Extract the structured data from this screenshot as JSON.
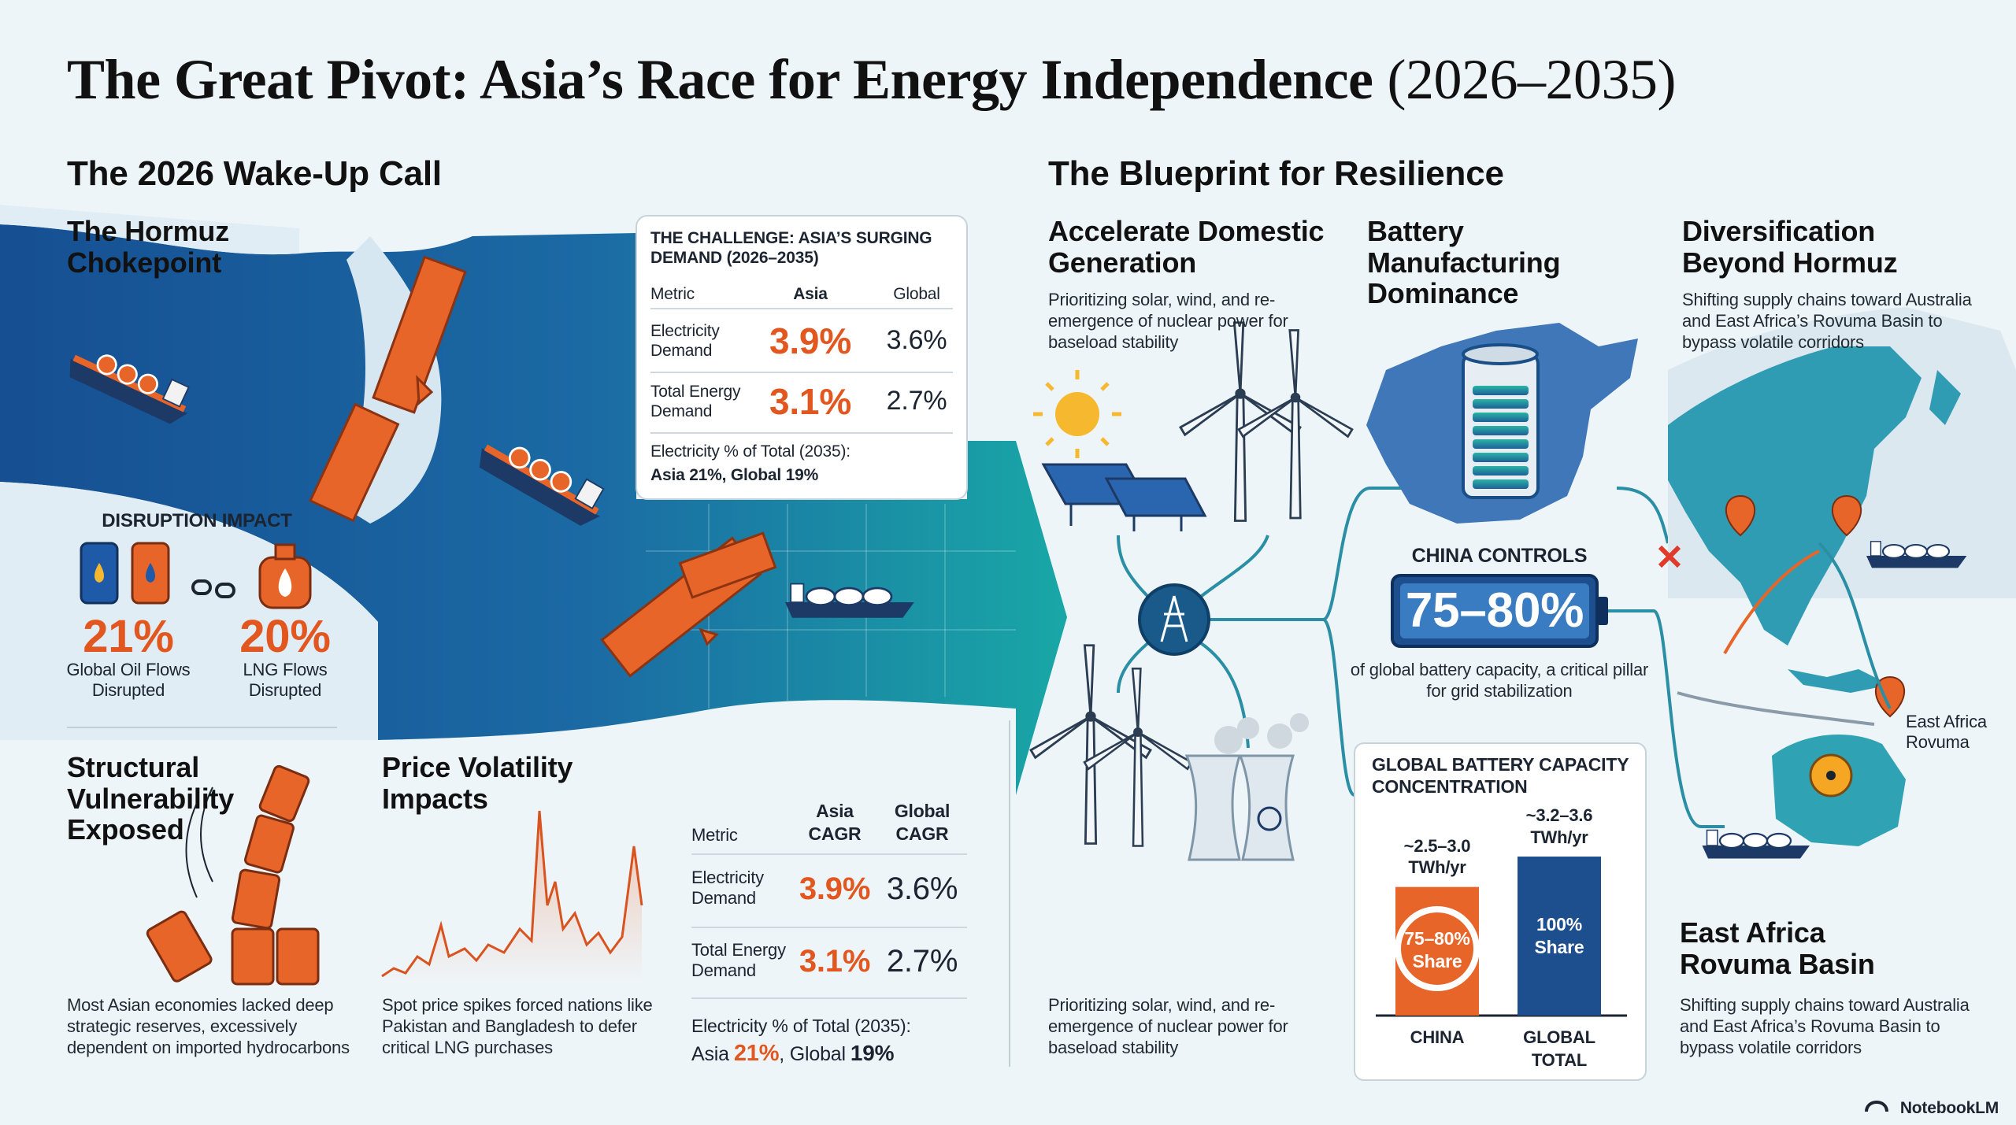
{
  "header": {
    "title": "The Great Pivot: Asia’s Race for Energy Independence",
    "years": "(2026–2035)"
  },
  "wake_up": {
    "heading": "The 2026 Wake-Up Call",
    "hormuz_title": "The Hormuz Chokepoint",
    "challenge": {
      "title": "THE CHALLENGE: ASIA’S SURGING DEMAND (2026–2035)",
      "columns": [
        "Metric",
        "Asia",
        "Global"
      ],
      "rows": [
        [
          "Electricity Demand",
          "3.9%",
          "3.6%"
        ],
        [
          "Total Energy Demand",
          "3.1%",
          "2.7%"
        ]
      ],
      "note_label": "Electricity % of Total (2035):",
      "note_value": "Asia 21%, Global 19%"
    },
    "disruption": {
      "title": "DISRUPTION IMPACT",
      "stats": [
        {
          "value": "21%",
          "label": "Global Oil Flows Disrupted"
        },
        {
          "value": "20%",
          "label": "LNG Flows Disrupted"
        }
      ]
    },
    "structural": {
      "title": "Structural Vulnerability Exposed",
      "text": "Most Asian economies lacked deep strategic reserves, excessively dependent on imported hydrocarbons"
    },
    "price": {
      "title": "Price Volatility Impacts",
      "text": "Spot price spikes forced nations like Pakistan and Bangladesh to defer critical LNG purchases"
    },
    "cagr_table": {
      "columns": [
        "Metric",
        "Asia CAGR",
        "Global CAGR"
      ],
      "rows": [
        [
          "Electricity Demand",
          "3.9%",
          "3.6%"
        ],
        [
          "Total Energy Demand",
          "3.1%",
          "2.7%"
        ]
      ],
      "note_label": "Electricity % of Total (2035):",
      "note_parts": [
        "Asia",
        "21%",
        ", Global",
        "19%"
      ]
    }
  },
  "blueprint": {
    "heading": "The Blueprint for Resilience",
    "generation": {
      "title": "Accelerate Domestic Generation",
      "text": "Prioritizing solar, wind, and re-emergence of nuclear power for baseload stability"
    },
    "battery": {
      "title": "Battery Manufacturing Dominance",
      "controls_label": "CHINA CONTROLS",
      "controls_value": "75–80%",
      "controls_text": "of global battery capacity, a critical pillar for grid stabilization"
    },
    "diversification": {
      "title": "Diversification Beyond Hormuz",
      "text": "Shifting supply chains toward Australia and East Africa’s Rovuma Basin to bypass volatile corridors",
      "map_label": "East Africa Rovuma"
    },
    "bottom_text": "Prioritizing solar, wind, and re-emergence of nuclear power for baseload stability",
    "rovuma": {
      "title": "East Africa Rovuma Basin",
      "text": "Shifting supply chains toward Australia and East Africa’s Rovuma Basin to bypass volatile corridors"
    }
  },
  "chart_data": {
    "type": "bar",
    "title": "GLOBAL BATTERY CAPACITY CONCENTRATION",
    "categories": [
      "CHINA",
      "GLOBAL TOTAL"
    ],
    "values": [
      2.75,
      3.4
    ],
    "value_labels": [
      "~2.5–3.0 TWh/yr",
      "~3.2–3.6 TWh/yr"
    ],
    "bar_texts": [
      "75–80% Share",
      "100% Share"
    ],
    "colors": [
      "#e8652a",
      "#1d4f8f"
    ]
  },
  "footer": {
    "brand": "NotebookLM"
  }
}
